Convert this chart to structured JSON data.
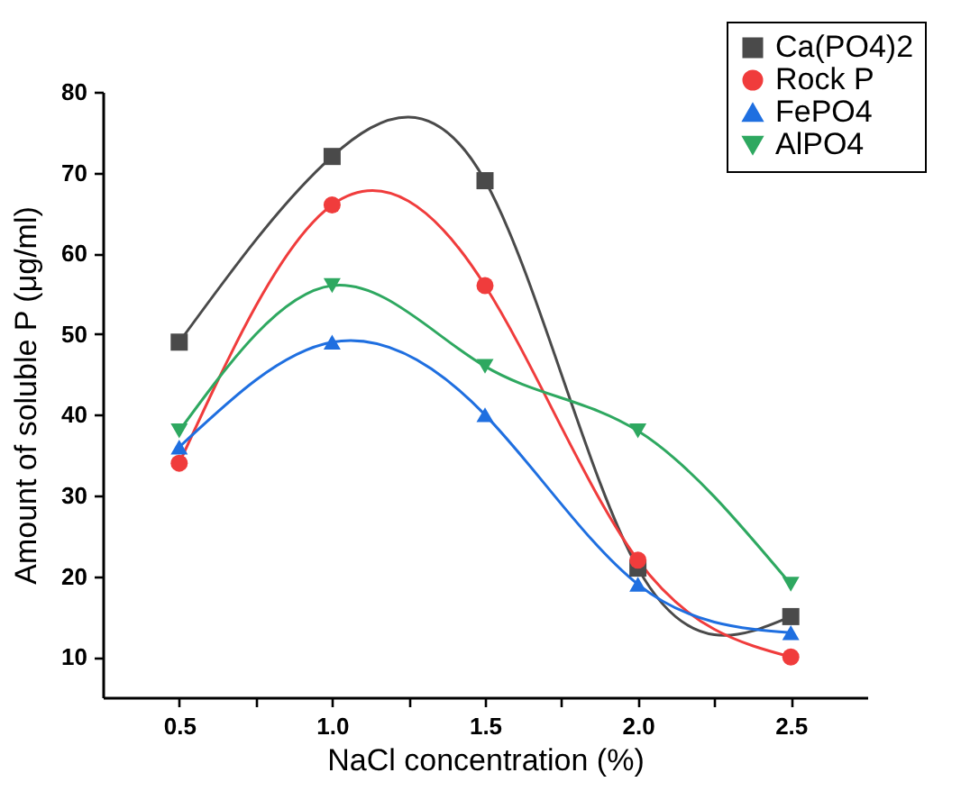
{
  "chart_data": {
    "type": "line",
    "xlabel": "NaCl concentration (%)",
    "ylabel": "Amount of soluble P (μg/ml)",
    "x": [
      0.5,
      1,
      1.5,
      2,
      2.5
    ],
    "series": [
      {
        "name": "Ca(PO4)2",
        "color": "#4a4a4a",
        "marker": "square",
        "values": [
          49,
          72,
          69,
          21,
          15
        ]
      },
      {
        "name": "Rock P",
        "color": "#f03c3c",
        "marker": "circle",
        "values": [
          34,
          66,
          56,
          22,
          10
        ]
      },
      {
        "name": "FePO4",
        "color": "#1f6fe0",
        "marker": "triangle",
        "values": [
          36,
          49,
          40,
          19,
          13
        ]
      },
      {
        "name": "AlPO4",
        "color": "#2ea860",
        "marker": "triangle-down",
        "values": [
          38,
          56,
          46,
          38,
          19
        ]
      }
    ],
    "xlim": [
      0.25,
      2.75
    ],
    "xticks": [
      {
        "value": 0.5,
        "label": "0.5"
      },
      {
        "value": 0.75,
        "label": null
      },
      {
        "value": 1,
        "label": "1.0"
      },
      {
        "value": 1.25,
        "label": null
      },
      {
        "value": 1.5,
        "label": "1.5"
      },
      {
        "value": 1.75,
        "label": null
      },
      {
        "value": 2,
        "label": "2.0"
      },
      {
        "value": 2.25,
        "label": null
      },
      {
        "value": 2.5,
        "label": "2.5"
      }
    ],
    "ylim": [
      5,
      80
    ],
    "yticks": [
      10,
      20,
      30,
      40,
      50,
      60,
      70,
      80
    ],
    "grid": false,
    "legend": "top right",
    "line_style": "solid"
  }
}
